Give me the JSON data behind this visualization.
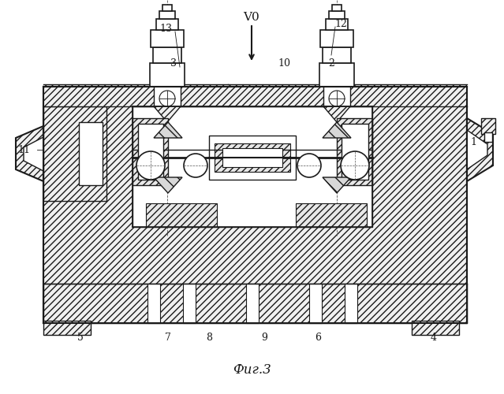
{
  "title": "Фиг.3",
  "label_vo": "V0",
  "bg_color": "#ffffff",
  "line_color": "#1a1a1a",
  "fig_width": 6.39,
  "fig_height": 5.0,
  "dpi": 100
}
